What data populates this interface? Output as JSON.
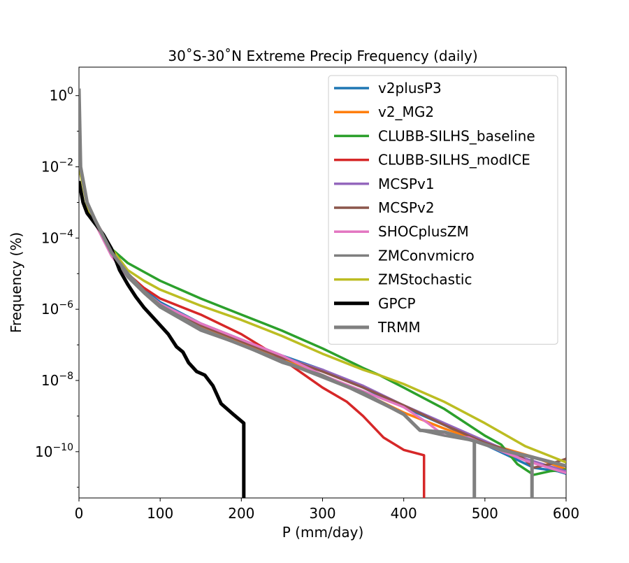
{
  "chart_data": {
    "type": "line",
    "title": "30˚S-30˚N Extreme Precip Frequency (daily)",
    "xlabel": "P (mm/day)",
    "ylabel": "Frequency (%)",
    "xscale": "linear",
    "yscale": "log",
    "xlim": [
      0,
      600
    ],
    "ylim_log10": [
      -11.3,
      0.8
    ],
    "xticks": [
      {
        "value": 0,
        "label": "0"
      },
      {
        "value": 100,
        "label": "100"
      },
      {
        "value": 200,
        "label": "200"
      },
      {
        "value": 300,
        "label": "300"
      },
      {
        "value": 400,
        "label": "400"
      },
      {
        "value": 500,
        "label": "500"
      },
      {
        "value": 600,
        "label": "600"
      }
    ],
    "yticks": [
      {
        "exp": 0,
        "base": "10",
        "sup": "0"
      },
      {
        "exp": -2,
        "base": "10",
        "sup": "−2"
      },
      {
        "exp": -4,
        "base": "10",
        "sup": "−4"
      },
      {
        "exp": -6,
        "base": "10",
        "sup": "−6"
      },
      {
        "exp": -8,
        "base": "10",
        "sup": "−8"
      },
      {
        "exp": -10,
        "base": "10",
        "sup": "−10"
      }
    ],
    "legend_position": "upper-right",
    "series": [
      {
        "name": "v2plusP3",
        "color": "#1f77b4",
        "width": 3.5,
        "points": [
          [
            0,
            0.2
          ],
          [
            2,
            -2.2
          ],
          [
            10,
            -3.0
          ],
          [
            20,
            -3.5
          ],
          [
            40,
            -4.3
          ],
          [
            60,
            -5.0
          ],
          [
            80,
            -5.45
          ],
          [
            100,
            -5.8
          ],
          [
            150,
            -6.4
          ],
          [
            200,
            -6.85
          ],
          [
            250,
            -7.3
          ],
          [
            300,
            -7.7
          ],
          [
            350,
            -8.2
          ],
          [
            400,
            -8.75
          ],
          [
            450,
            -9.25
          ],
          [
            500,
            -9.8
          ],
          [
            560,
            -10.45
          ],
          [
            590,
            -10.55
          ],
          [
            600,
            -10.62
          ]
        ]
      },
      {
        "name": "v2_MG2",
        "color": "#ff7f0e",
        "width": 3.5,
        "points": [
          [
            0,
            0.2
          ],
          [
            2,
            -2.2
          ],
          [
            10,
            -3.0
          ],
          [
            20,
            -3.5
          ],
          [
            40,
            -4.3
          ],
          [
            60,
            -5.0
          ],
          [
            80,
            -5.5
          ],
          [
            100,
            -5.9
          ],
          [
            150,
            -6.5
          ],
          [
            200,
            -6.95
          ],
          [
            250,
            -7.4
          ],
          [
            300,
            -7.85
          ],
          [
            350,
            -8.35
          ],
          [
            400,
            -8.9
          ],
          [
            450,
            -9.35
          ],
          [
            500,
            -9.75
          ],
          [
            560,
            -10.15
          ],
          [
            600,
            -10.5
          ]
        ]
      },
      {
        "name": "CLUBB-SILHS_baseline",
        "color": "#2ca02c",
        "width": 3.5,
        "points": [
          [
            0,
            0.2
          ],
          [
            2,
            -2.1
          ],
          [
            10,
            -3.1
          ],
          [
            20,
            -3.6
          ],
          [
            40,
            -4.3
          ],
          [
            60,
            -4.7
          ],
          [
            80,
            -4.95
          ],
          [
            100,
            -5.2
          ],
          [
            150,
            -5.7
          ],
          [
            200,
            -6.15
          ],
          [
            250,
            -6.6
          ],
          [
            300,
            -7.1
          ],
          [
            350,
            -7.65
          ],
          [
            370,
            -7.85
          ],
          [
            400,
            -8.2
          ],
          [
            450,
            -8.8
          ],
          [
            500,
            -9.55
          ],
          [
            520,
            -9.8
          ],
          [
            540,
            -10.35
          ],
          [
            560,
            -10.65
          ],
          [
            580,
            -10.55
          ],
          [
            600,
            -10.5
          ]
        ]
      },
      {
        "name": "CLUBB-SILHS_modICE",
        "color": "#d62728",
        "width": 3.5,
        "points": [
          [
            0,
            0.2
          ],
          [
            2,
            -2.0
          ],
          [
            10,
            -3.0
          ],
          [
            20,
            -3.5
          ],
          [
            40,
            -4.3
          ],
          [
            60,
            -5.0
          ],
          [
            80,
            -5.4
          ],
          [
            100,
            -5.7
          ],
          [
            150,
            -6.15
          ],
          [
            200,
            -6.7
          ],
          [
            250,
            -7.4
          ],
          [
            300,
            -8.2
          ],
          [
            330,
            -8.6
          ],
          [
            350,
            -9.0
          ],
          [
            375,
            -9.6
          ],
          [
            400,
            -9.95
          ],
          [
            425,
            -10.1
          ],
          [
            425,
            -11.4
          ]
        ]
      },
      {
        "name": "MCSPv1",
        "color": "#9467bd",
        "width": 3.5,
        "points": [
          [
            0,
            0.2
          ],
          [
            2,
            -2.2
          ],
          [
            10,
            -3.0
          ],
          [
            20,
            -3.5
          ],
          [
            40,
            -4.3
          ],
          [
            60,
            -5.0
          ],
          [
            80,
            -5.5
          ],
          [
            100,
            -5.85
          ],
          [
            150,
            -6.45
          ],
          [
            200,
            -6.9
          ],
          [
            250,
            -7.35
          ],
          [
            300,
            -7.7
          ],
          [
            350,
            -8.15
          ],
          [
            400,
            -8.7
          ],
          [
            450,
            -9.2
          ],
          [
            500,
            -9.7
          ],
          [
            550,
            -10.2
          ],
          [
            600,
            -10.55
          ]
        ]
      },
      {
        "name": "MCSPv2",
        "color": "#8c564b",
        "width": 3.5,
        "points": [
          [
            0,
            0.2
          ],
          [
            2,
            -2.2
          ],
          [
            10,
            -3.0
          ],
          [
            20,
            -3.5
          ],
          [
            40,
            -4.3
          ],
          [
            60,
            -5.0
          ],
          [
            80,
            -5.5
          ],
          [
            100,
            -5.85
          ],
          [
            150,
            -6.45
          ],
          [
            200,
            -6.9
          ],
          [
            250,
            -7.35
          ],
          [
            300,
            -7.75
          ],
          [
            350,
            -8.2
          ],
          [
            400,
            -8.7
          ],
          [
            450,
            -9.25
          ],
          [
            500,
            -9.75
          ],
          [
            540,
            -10.05
          ],
          [
            560,
            -10.45
          ],
          [
            580,
            -10.35
          ],
          [
            600,
            -10.2
          ]
        ]
      },
      {
        "name": "SHOCplusZM",
        "color": "#e377c2",
        "width": 3.5,
        "points": [
          [
            0,
            0.2
          ],
          [
            2,
            -2.2
          ],
          [
            10,
            -3.0
          ],
          [
            20,
            -3.6
          ],
          [
            40,
            -4.5
          ],
          [
            60,
            -5.1
          ],
          [
            80,
            -5.5
          ],
          [
            100,
            -5.85
          ],
          [
            150,
            -6.4
          ],
          [
            200,
            -6.85
          ],
          [
            250,
            -7.3
          ],
          [
            300,
            -7.85
          ],
          [
            350,
            -8.3
          ],
          [
            400,
            -8.75
          ],
          [
            430,
            -9.2
          ],
          [
            450,
            -9.55
          ],
          [
            480,
            -9.6
          ],
          [
            500,
            -9.8
          ],
          [
            550,
            -10.25
          ],
          [
            600,
            -10.6
          ]
        ]
      },
      {
        "name": "ZMConvmicro",
        "color": "#7f7f7f",
        "width": 3.5,
        "points": [
          [
            0,
            0.2
          ],
          [
            2,
            -2.2
          ],
          [
            10,
            -3.0
          ],
          [
            20,
            -3.5
          ],
          [
            40,
            -4.4
          ],
          [
            60,
            -5.1
          ],
          [
            80,
            -5.55
          ],
          [
            100,
            -5.95
          ],
          [
            150,
            -6.6
          ],
          [
            200,
            -7.0
          ],
          [
            250,
            -7.5
          ],
          [
            300,
            -7.85
          ],
          [
            350,
            -8.4
          ],
          [
            400,
            -8.95
          ],
          [
            420,
            -9.4
          ],
          [
            450,
            -9.55
          ],
          [
            487,
            -9.7
          ],
          [
            487,
            -11.4
          ]
        ]
      },
      {
        "name": "ZMStochastic",
        "color": "#bcbd22",
        "width": 3.5,
        "points": [
          [
            0,
            0.2
          ],
          [
            2,
            -2.2
          ],
          [
            10,
            -3.1
          ],
          [
            20,
            -3.6
          ],
          [
            40,
            -4.3
          ],
          [
            60,
            -4.9
          ],
          [
            80,
            -5.2
          ],
          [
            100,
            -5.45
          ],
          [
            150,
            -5.9
          ],
          [
            200,
            -6.3
          ],
          [
            250,
            -6.75
          ],
          [
            300,
            -7.25
          ],
          [
            350,
            -7.7
          ],
          [
            370,
            -7.85
          ],
          [
            400,
            -8.1
          ],
          [
            450,
            -8.6
          ],
          [
            500,
            -9.2
          ],
          [
            550,
            -9.85
          ],
          [
            600,
            -10.3
          ]
        ]
      },
      {
        "name": "GPCP",
        "color": "#000000",
        "width": 5,
        "points": [
          [
            0,
            -2.4
          ],
          [
            5,
            -3.0
          ],
          [
            10,
            -3.3
          ],
          [
            20,
            -3.6
          ],
          [
            30,
            -3.9
          ],
          [
            40,
            -4.3
          ],
          [
            50,
            -4.9
          ],
          [
            60,
            -5.3
          ],
          [
            70,
            -5.65
          ],
          [
            80,
            -5.95
          ],
          [
            90,
            -6.2
          ],
          [
            100,
            -6.45
          ],
          [
            110,
            -6.7
          ],
          [
            120,
            -7.05
          ],
          [
            128,
            -7.2
          ],
          [
            135,
            -7.5
          ],
          [
            145,
            -7.75
          ],
          [
            155,
            -7.85
          ],
          [
            165,
            -8.15
          ],
          [
            175,
            -8.65
          ],
          [
            190,
            -8.95
          ],
          [
            203,
            -9.2
          ],
          [
            203,
            -11.4
          ]
        ]
      },
      {
        "name": "TRMM",
        "color": "#808080",
        "width": 5,
        "points": [
          [
            0,
            0.2
          ],
          [
            2,
            -2.0
          ],
          [
            10,
            -3.0
          ],
          [
            20,
            -3.5
          ],
          [
            40,
            -4.4
          ],
          [
            60,
            -5.0
          ],
          [
            80,
            -5.5
          ],
          [
            100,
            -5.9
          ],
          [
            150,
            -6.55
          ],
          [
            200,
            -7.0
          ],
          [
            250,
            -7.45
          ],
          [
            300,
            -7.9
          ],
          [
            350,
            -8.35
          ],
          [
            400,
            -8.95
          ],
          [
            420,
            -9.4
          ],
          [
            450,
            -9.45
          ],
          [
            487,
            -9.7
          ],
          [
            487,
            -11.4
          ],
          [
            487,
            -9.7
          ],
          [
            520,
            -9.95
          ],
          [
            558,
            -10.15
          ],
          [
            558,
            -11.4
          ],
          [
            558,
            -10.15
          ],
          [
            600,
            -10.4
          ]
        ]
      }
    ]
  }
}
